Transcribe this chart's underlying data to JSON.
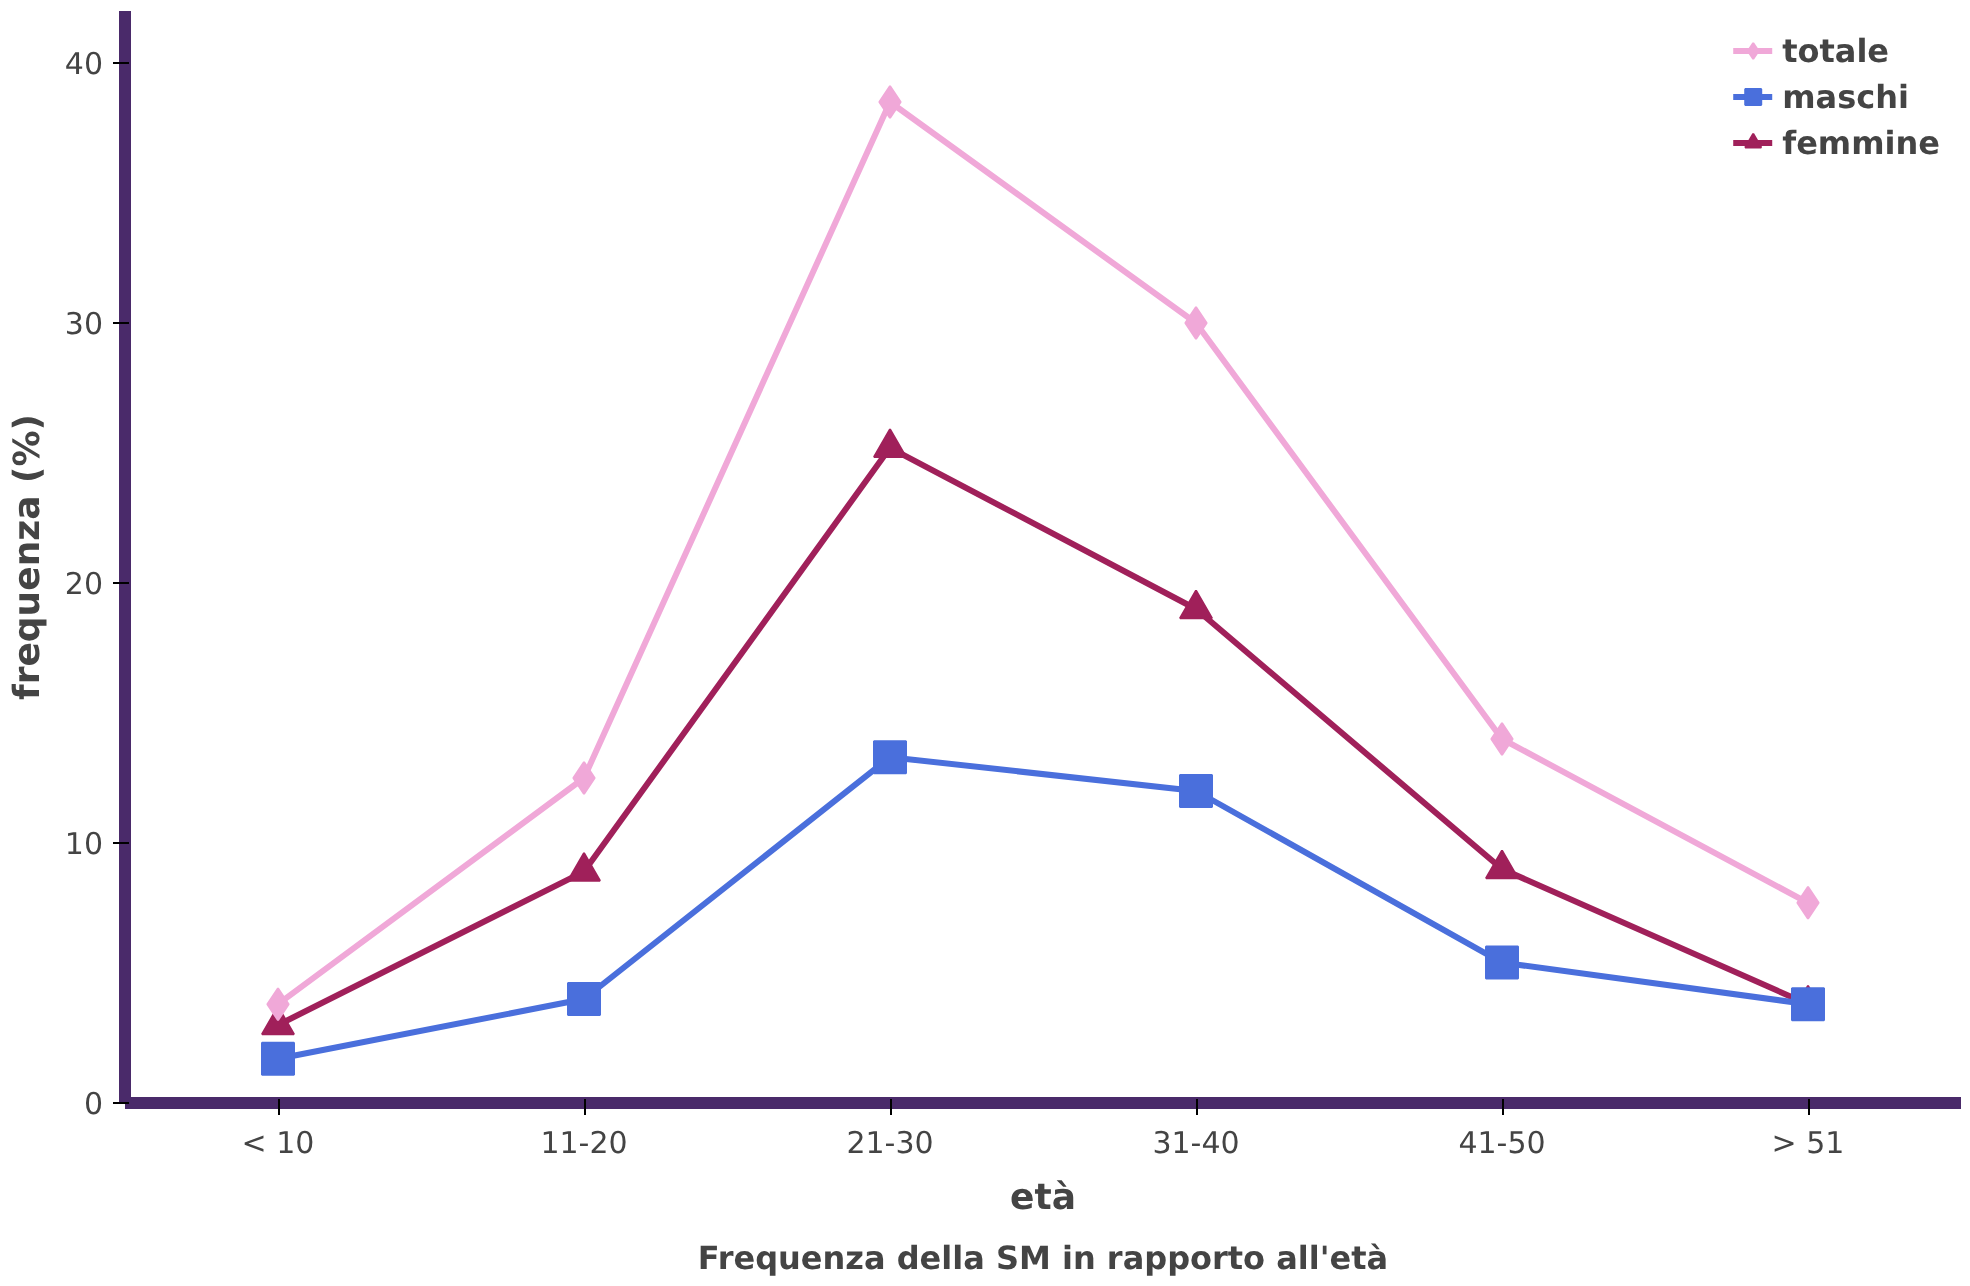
{
  "chart_data": {
    "type": "line",
    "xlabel": "età",
    "ylabel": "frequenza (%)",
    "categories": [
      "< 10",
      "11-20",
      "21-30",
      "31-40",
      "41-50",
      "> 51"
    ],
    "series": [
      {
        "name": "totale",
        "color": "#f0a8d8",
        "marker": "diamond",
        "values": [
          3.8,
          12.5,
          38.5,
          30,
          14,
          7.7
        ]
      },
      {
        "name": "maschi",
        "color": "#4a6fdc",
        "marker": "square",
        "values": [
          1.7,
          4,
          13.3,
          12,
          5.4,
          3.8
        ]
      },
      {
        "name": "femmine",
        "color": "#a0205a",
        "marker": "triangle",
        "values": [
          3.0,
          8.9,
          25.2,
          19,
          9,
          3.8
        ]
      }
    ],
    "ylim": [
      0,
      42
    ],
    "yticks": [
      0,
      10,
      20,
      30,
      40
    ],
    "grid": false,
    "legend": "top right",
    "annotations": [
      "Frequenza della SM in rapporto all'età"
    ]
  }
}
